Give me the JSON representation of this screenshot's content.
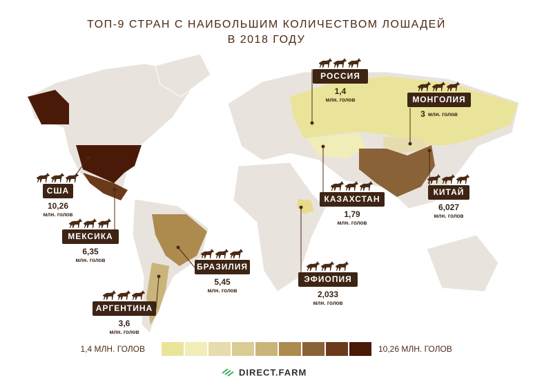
{
  "title": {
    "line1": "ТОП-9 СТРАН С НАИБОЛЬШИМ КОЛИЧЕСТВОМ ЛОШАДЕЙ",
    "line2": "В 2018 ГОДУ"
  },
  "countries": [
    {
      "name": "РОССИЯ",
      "value": "1,4",
      "unit": "млн. голов"
    },
    {
      "name": "МОНГОЛИЯ",
      "value": "3",
      "unit": "млн. голов"
    },
    {
      "name": "США",
      "value": "10,26",
      "unit": "млн. голов"
    },
    {
      "name": "МЕКСИКА",
      "value": "6,35",
      "unit": "млн. голов"
    },
    {
      "name": "КИТАЙ",
      "value": "6,027",
      "unit": "млн. голов"
    },
    {
      "name": "КАЗАХСТАН",
      "value": "1,79",
      "unit": "млн. голов"
    },
    {
      "name": "БРАЗИЛИЯ",
      "value": "5,45",
      "unit": "млн. голов"
    },
    {
      "name": "ЭФИОПИЯ",
      "value": "2,033",
      "unit": "млн. голов"
    },
    {
      "name": "АРГЕНТИНА",
      "value": "3,6",
      "unit": "млн. голов"
    }
  ],
  "legend": {
    "min_label": "1,4 МЛН. ГОЛОВ",
    "max_label": "10,26 МЛН. ГОЛОВ",
    "colors": [
      "#e9e49a",
      "#f1edb8",
      "#e6dcae",
      "#d9cc94",
      "#c9b47a",
      "#ad8a4e",
      "#8a6238",
      "#6b3a1a",
      "#4a1a08"
    ]
  },
  "footer": {
    "brand": "DIRECT.FARM"
  }
}
